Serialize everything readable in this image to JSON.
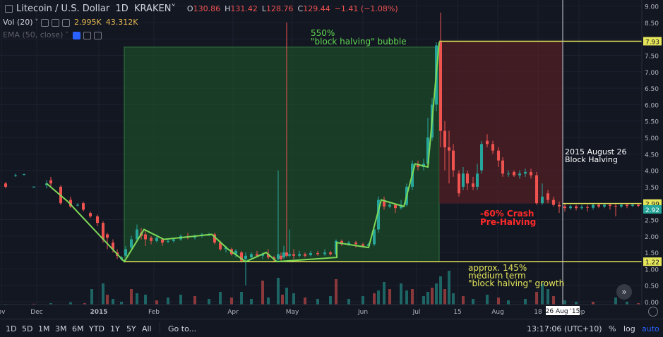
{
  "header": {
    "symbol_title": "Litecoin / U.S. Dollar",
    "interval": "1D",
    "exchange": "KRAKEN",
    "o_key": "O",
    "o_val": "130.86",
    "h_key": "H",
    "h_val": "131.42",
    "l_key": "L",
    "l_val": "128.76",
    "c_key": "C",
    "c_val": "129.44",
    "change": "−1.41 (−1.08%)"
  },
  "indicators": {
    "vol_label": "Vol (20)",
    "vol_value_1": "2.995K",
    "vol_value_2": "43.312K",
    "ema_label": "EMA (50, close)"
  },
  "toolbar": {
    "ranges": [
      "1D",
      "5D",
      "1M",
      "3M",
      "6M",
      "YTD",
      "1Y",
      "5Y",
      "All"
    ],
    "goto": "Go to...",
    "time": "13:17:06 (UTC+10)",
    "percent": "%",
    "log": "log",
    "auto": "auto"
  },
  "colors": {
    "background": "#131722",
    "up": "#26a69a",
    "down": "#ef5350",
    "pattern_line": "#7ed957",
    "level_line": "#e6e65a",
    "growth_box": "#1f5b2a",
    "crash_box": "#5b1f25"
  },
  "chart_data": {
    "type": "candlestick",
    "x_ticks": [
      "ov",
      "Dec",
      "2015",
      "Feb",
      "Apr",
      "May",
      "Jun",
      "Jul",
      "15",
      "Aug",
      "18",
      "Sep"
    ],
    "y_ticks": [
      "9.00",
      "8.50",
      "8.00",
      "7.50",
      "7.00",
      "6.50",
      "6.00",
      "5.50",
      "5.00",
      "4.50",
      "4.00",
      "3.50",
      "3.00",
      "2.50",
      "2.00",
      "1.50",
      "1.00",
      "0.50",
      "0.00"
    ],
    "ylim": [
      0,
      9
    ],
    "price_levels": [
      {
        "label": "7.93",
        "value": 7.93
      },
      {
        "label": "2.99",
        "value": 2.99
      },
      {
        "label": "2.92",
        "value": 2.92
      },
      {
        "label": "1.22",
        "value": 1.22
      }
    ],
    "crosshair_date": "26 Aug '15",
    "annotations": [
      {
        "id": "bubble",
        "lines": [
          "550%",
          "\"block halving\" bubble"
        ]
      },
      {
        "id": "halving",
        "lines": [
          "2015 August 26",
          "Block Halving"
        ]
      },
      {
        "id": "crash",
        "lines": [
          "-60% Crash",
          "Pre-Halving"
        ]
      },
      {
        "id": "growth",
        "lines": [
          "approx. 145%",
          "medium term",
          "\"block halving\" growth"
        ]
      }
    ],
    "pattern_path": [
      [
        66,
        3.6
      ],
      [
        96,
        3.05
      ],
      [
        176,
        1.22
      ],
      [
        204,
        2.2
      ],
      [
        232,
        1.9
      ],
      [
        300,
        2.05
      ],
      [
        323,
        1.6
      ],
      [
        348,
        1.22
      ],
      [
        377,
        1.5
      ],
      [
        392,
        1.22
      ],
      [
        477,
        1.35
      ],
      [
        477,
        1.8
      ],
      [
        522,
        1.65
      ],
      [
        540,
        3.1
      ],
      [
        572,
        2.9
      ],
      [
        588,
        4.2
      ],
      [
        606,
        4.1
      ],
      [
        622,
        7.9
      ]
    ],
    "candles": [
      [
        8,
        3.6,
        3.5,
        3.65,
        3.45
      ],
      [
        22,
        3.85,
        3.85,
        3.9,
        3.8
      ],
      [
        34,
        3.88,
        3.88,
        3.9,
        3.85
      ],
      [
        48,
        3.5,
        3.5,
        3.52,
        3.48
      ],
      [
        66,
        3.55,
        3.6,
        3.7,
        3.45
      ],
      [
        72,
        3.7,
        3.6,
        3.8,
        3.5
      ],
      [
        86,
        3.5,
        3.0,
        3.55,
        2.95
      ],
      [
        100,
        3.1,
        2.9,
        3.2,
        2.85
      ],
      [
        110,
        2.95,
        2.95,
        3.0,
        2.9
      ],
      [
        118,
        3.0,
        2.8,
        3.05,
        2.75
      ],
      [
        128,
        2.7,
        2.6,
        2.75,
        2.55
      ],
      [
        138,
        2.6,
        2.4,
        2.65,
        2.3
      ],
      [
        146,
        2.4,
        1.9,
        2.45,
        1.8
      ],
      [
        152,
        2.05,
        1.95,
        2.1,
        1.6
      ],
      [
        160,
        1.8,
        1.6,
        1.9,
        1.5
      ],
      [
        166,
        1.5,
        1.4,
        1.6,
        1.3
      ],
      [
        172,
        1.3,
        1.35,
        1.4,
        1.25
      ],
      [
        178,
        1.4,
        1.6,
        1.7,
        1.35
      ],
      [
        186,
        1.65,
        1.9,
        2.0,
        1.6
      ],
      [
        194,
        1.9,
        2.2,
        2.35,
        1.85
      ],
      [
        200,
        2.1,
        2.0,
        2.25,
        1.9
      ],
      [
        206,
        2.05,
        1.9,
        2.2,
        1.7
      ],
      [
        214,
        1.95,
        1.85,
        2.0,
        1.75
      ],
      [
        222,
        1.85,
        1.95,
        2.05,
        1.8
      ],
      [
        230,
        1.9,
        1.8,
        1.95,
        1.7
      ],
      [
        238,
        1.85,
        1.85,
        1.9,
        1.78
      ],
      [
        246,
        1.85,
        1.9,
        1.95,
        1.8
      ],
      [
        256,
        1.9,
        2.0,
        2.05,
        1.85
      ],
      [
        266,
        2.0,
        1.95,
        2.1,
        1.9
      ],
      [
        276,
        1.95,
        2.0,
        2.05,
        1.9
      ],
      [
        286,
        2.0,
        2.05,
        2.1,
        1.95
      ],
      [
        296,
        2.05,
        2.05,
        2.1,
        2.0
      ],
      [
        304,
        2.05,
        1.8,
        2.1,
        1.75
      ],
      [
        312,
        1.8,
        1.6,
        1.85,
        1.55
      ],
      [
        320,
        1.6,
        1.65,
        1.7,
        1.5
      ],
      [
        328,
        1.6,
        1.45,
        1.65,
        1.4
      ],
      [
        334,
        1.45,
        1.55,
        1.6,
        1.35
      ],
      [
        342,
        1.5,
        1.25,
        1.55,
        1.2
      ],
      [
        348,
        1.3,
        1.4,
        1.5,
        0.5
      ],
      [
        356,
        1.35,
        1.45,
        1.5,
        1.3
      ],
      [
        364,
        1.45,
        1.4,
        1.55,
        1.35
      ],
      [
        372,
        1.4,
        1.45,
        1.5,
        1.3
      ],
      [
        380,
        1.45,
        1.35,
        1.6,
        1.3
      ],
      [
        388,
        1.35,
        1.3,
        1.4,
        1.2
      ],
      [
        394,
        1.3,
        1.45,
        4.0,
        1.2
      ],
      [
        398,
        1.4,
        1.3,
        1.5,
        1.25
      ],
      [
        402,
        1.35,
        1.5,
        1.7,
        1.3
      ],
      [
        406,
        1.5,
        1.4,
        8.5,
        1.35
      ],
      [
        410,
        1.4,
        1.45,
        2.2,
        1.35
      ],
      [
        416,
        1.45,
        1.4,
        1.6,
        1.3
      ],
      [
        424,
        1.4,
        1.45,
        1.55,
        1.35
      ],
      [
        432,
        1.45,
        1.4,
        1.5,
        1.35
      ],
      [
        440,
        1.42,
        1.48,
        1.55,
        1.38
      ],
      [
        450,
        1.48,
        1.45,
        1.55,
        1.4
      ],
      [
        460,
        1.45,
        1.5,
        1.6,
        1.4
      ],
      [
        468,
        1.5,
        1.45,
        1.55,
        1.4
      ],
      [
        476,
        1.45,
        1.85,
        1.9,
        1.4
      ],
      [
        484,
        1.85,
        1.75,
        1.9,
        1.7
      ],
      [
        494,
        1.75,
        1.8,
        1.85,
        1.7
      ],
      [
        504,
        1.8,
        1.75,
        1.85,
        1.65
      ],
      [
        514,
        1.75,
        1.7,
        1.8,
        1.65
      ],
      [
        522,
        1.7,
        1.75,
        1.8,
        1.65
      ],
      [
        530,
        1.75,
        2.2,
        2.3,
        1.7
      ],
      [
        536,
        2.2,
        3.1,
        3.2,
        2.1
      ],
      [
        544,
        3.1,
        2.9,
        3.2,
        2.8
      ],
      [
        552,
        2.9,
        2.95,
        3.05,
        2.85
      ],
      [
        560,
        2.95,
        2.85,
        3.0,
        2.7
      ],
      [
        568,
        2.85,
        2.95,
        3.1,
        2.8
      ],
      [
        576,
        2.95,
        3.5,
        3.6,
        2.9
      ],
      [
        584,
        3.5,
        4.2,
        4.3,
        3.4
      ],
      [
        592,
        4.2,
        4.1,
        4.3,
        4.0
      ],
      [
        600,
        4.1,
        4.2,
        4.35,
        4.0
      ],
      [
        606,
        4.2,
        5.0,
        5.6,
        4.1
      ],
      [
        612,
        5.0,
        6.0,
        6.2,
        4.9
      ],
      [
        618,
        6.0,
        7.8,
        7.9,
        5.8
      ],
      [
        624,
        7.9,
        5.2,
        8.8,
        4.7
      ],
      [
        630,
        5.2,
        4.7,
        5.5,
        4.0
      ],
      [
        636,
        4.7,
        4.6,
        5.2,
        3.6
      ],
      [
        642,
        4.6,
        4.0,
        4.8,
        3.8
      ],
      [
        650,
        3.9,
        3.3,
        4.0,
        3.2
      ],
      [
        656,
        3.5,
        3.9,
        4.1,
        3.4
      ],
      [
        662,
        3.9,
        3.6,
        4.0,
        3.4
      ],
      [
        670,
        3.6,
        3.5,
        3.8,
        3.4
      ],
      [
        676,
        3.5,
        3.9,
        4.2,
        3.4
      ],
      [
        682,
        4.0,
        4.8,
        4.9,
        3.9
      ],
      [
        690,
        4.9,
        4.8,
        5.1,
        4.7
      ],
      [
        698,
        4.8,
        4.6,
        4.9,
        4.5
      ],
      [
        706,
        4.6,
        4.3,
        4.7,
        4.1
      ],
      [
        712,
        4.3,
        3.9,
        4.4,
        3.8
      ],
      [
        720,
        3.9,
        3.9,
        4.0,
        3.8
      ],
      [
        728,
        3.95,
        3.85,
        4.0,
        3.8
      ],
      [
        736,
        3.85,
        3.9,
        4.0,
        3.75
      ],
      [
        744,
        3.9,
        3.95,
        4.05,
        3.8
      ],
      [
        752,
        3.95,
        3.85,
        4.05,
        3.75
      ],
      [
        760,
        3.85,
        3.0,
        3.95,
        2.95
      ],
      [
        768,
        3.0,
        3.2,
        3.6,
        2.95
      ],
      [
        776,
        3.3,
        3.1,
        3.4,
        3.0
      ],
      [
        784,
        3.1,
        2.95,
        3.2,
        2.9
      ],
      [
        792,
        2.95,
        2.9,
        3.05,
        2.7
      ],
      [
        800,
        2.9,
        2.85,
        3.0,
        2.75
      ],
      [
        808,
        2.85,
        2.9,
        2.95,
        2.8
      ],
      [
        816,
        2.9,
        2.85,
        2.95,
        2.78
      ],
      [
        824,
        2.85,
        2.88,
        2.95,
        2.8
      ],
      [
        832,
        2.88,
        2.86,
        2.95,
        2.75
      ],
      [
        840,
        2.86,
        2.95,
        3.0,
        2.8
      ],
      [
        848,
        2.95,
        2.9,
        3.0,
        2.85
      ],
      [
        856,
        2.9,
        2.95,
        3.0,
        2.85
      ],
      [
        864,
        2.95,
        2.92,
        3.0,
        2.8
      ],
      [
        872,
        2.92,
        2.9,
        2.98,
        2.6
      ],
      [
        880,
        2.9,
        2.95,
        3.0,
        2.85
      ],
      [
        888,
        2.95,
        2.92,
        2.98,
        2.85
      ],
      [
        896,
        2.92,
        2.95,
        3.0,
        2.88
      ],
      [
        904,
        2.95,
        2.92,
        2.98,
        2.88
      ]
    ],
    "volume_relative": [
      [
        8,
        0.02
      ],
      [
        48,
        0.03
      ],
      [
        72,
        0.05
      ],
      [
        100,
        0.08
      ],
      [
        120,
        0.05
      ],
      [
        130,
        0.55
      ],
      [
        146,
        0.75
      ],
      [
        152,
        0.35
      ],
      [
        160,
        0.2
      ],
      [
        172,
        0.1
      ],
      [
        186,
        0.55
      ],
      [
        194,
        0.4
      ],
      [
        206,
        0.35
      ],
      [
        222,
        0.15
      ],
      [
        238,
        0.25
      ],
      [
        256,
        0.35
      ],
      [
        276,
        0.3
      ],
      [
        296,
        0.2
      ],
      [
        312,
        0.45
      ],
      [
        328,
        0.25
      ],
      [
        342,
        0.45
      ],
      [
        356,
        0.2
      ],
      [
        372,
        0.85
      ],
      [
        380,
        0.25
      ],
      [
        394,
        0.95
      ],
      [
        400,
        0.35
      ],
      [
        406,
        0.6
      ],
      [
        416,
        0.4
      ],
      [
        432,
        0.25
      ],
      [
        450,
        0.2
      ],
      [
        468,
        0.3
      ],
      [
        476,
        0.9
      ],
      [
        494,
        0.2
      ],
      [
        514,
        0.3
      ],
      [
        530,
        0.4
      ],
      [
        536,
        0.5
      ],
      [
        544,
        0.8
      ],
      [
        552,
        0.55
      ],
      [
        568,
        0.75
      ],
      [
        576,
        0.5
      ],
      [
        584,
        0.55
      ],
      [
        600,
        0.3
      ],
      [
        606,
        0.45
      ],
      [
        612,
        0.6
      ],
      [
        618,
        0.75
      ],
      [
        624,
        1.0
      ],
      [
        630,
        0.55
      ],
      [
        636,
        1.2
      ],
      [
        642,
        0.4
      ],
      [
        656,
        0.3
      ],
      [
        670,
        0.2
      ],
      [
        690,
        0.35
      ],
      [
        706,
        0.25
      ],
      [
        720,
        0.15
      ],
      [
        744,
        0.2
      ],
      [
        760,
        0.45
      ],
      [
        768,
        0.75
      ],
      [
        776,
        0.55
      ],
      [
        784,
        0.3
      ],
      [
        800,
        0.15
      ],
      [
        816,
        0.1
      ],
      [
        840,
        0.1
      ],
      [
        872,
        0.25
      ],
      [
        888,
        0.1
      ],
      [
        904,
        0.05
      ]
    ]
  }
}
